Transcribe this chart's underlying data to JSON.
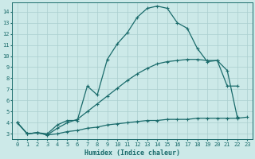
{
  "xlabel": "Humidex (Indice chaleur)",
  "bg_color": "#cce9e8",
  "grid_color": "#aacfcf",
  "line_color": "#1a6b6b",
  "xlim": [
    -0.5,
    23.5
  ],
  "ylim": [
    2.5,
    14.8
  ],
  "xticks": [
    0,
    1,
    2,
    3,
    4,
    5,
    6,
    7,
    8,
    9,
    10,
    11,
    12,
    13,
    14,
    15,
    16,
    17,
    18,
    19,
    20,
    21,
    22,
    23
  ],
  "yticks": [
    3,
    4,
    5,
    6,
    7,
    8,
    9,
    10,
    11,
    12,
    13,
    14
  ],
  "line1_x": [
    0,
    1,
    2,
    3,
    4,
    5,
    6,
    7,
    8,
    9,
    10,
    11,
    12,
    13,
    14,
    15,
    16,
    17,
    18,
    19,
    20,
    21,
    22
  ],
  "line1_y": [
    4.0,
    3.0,
    3.1,
    3.0,
    3.8,
    4.2,
    4.2,
    7.3,
    6.5,
    9.7,
    11.1,
    12.1,
    13.5,
    14.3,
    14.5,
    14.3,
    13.0,
    12.5,
    10.7,
    9.5,
    9.6,
    7.3,
    7.3
  ],
  "line2_x": [
    0,
    1,
    2,
    3,
    4,
    5,
    6,
    7,
    8,
    9,
    10,
    11,
    12,
    13,
    14,
    15,
    16,
    17,
    18,
    19,
    20,
    21,
    22
  ],
  "line2_y": [
    4.0,
    3.0,
    3.1,
    2.9,
    3.5,
    4.0,
    4.3,
    5.0,
    5.7,
    6.4,
    7.1,
    7.8,
    8.4,
    8.9,
    9.3,
    9.5,
    9.6,
    9.7,
    9.7,
    9.6,
    9.6,
    8.7,
    4.5
  ],
  "line3_x": [
    0,
    1,
    2,
    3,
    4,
    5,
    6,
    7,
    8,
    9,
    10,
    11,
    12,
    13,
    14,
    15,
    16,
    17,
    18,
    19,
    20,
    21,
    22,
    23
  ],
  "line3_y": [
    4.0,
    3.0,
    3.1,
    2.9,
    3.0,
    3.2,
    3.3,
    3.5,
    3.6,
    3.8,
    3.9,
    4.0,
    4.1,
    4.2,
    4.2,
    4.3,
    4.3,
    4.3,
    4.4,
    4.4,
    4.4,
    4.4,
    4.4,
    4.5
  ],
  "markersize": 3,
  "linewidth": 0.9
}
